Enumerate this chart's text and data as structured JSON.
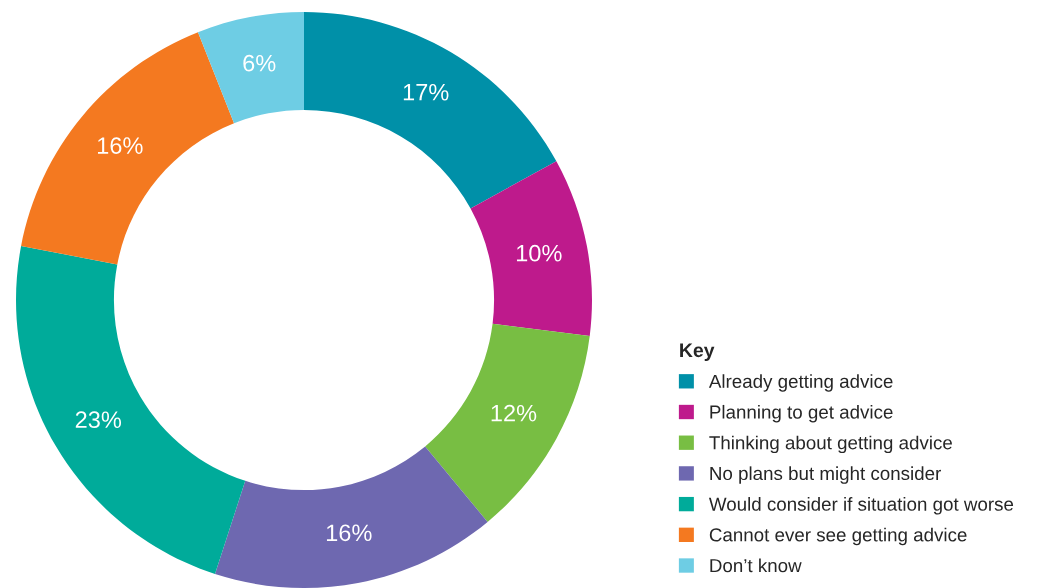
{
  "chart_data": {
    "type": "donut",
    "legend_title": "Key",
    "categories": [
      "Already getting advice",
      "Planning to get advice",
      "Thinking about getting advice",
      "No plans but might consider",
      "Would consider if situation got worse",
      "Cannot ever see getting advice",
      "Don’t know"
    ],
    "values": [
      17,
      10,
      12,
      16,
      23,
      16,
      6
    ],
    "value_labels": [
      "17%",
      "10%",
      "12%",
      "16%",
      "23%",
      "16%",
      "6%"
    ],
    "colors": [
      "#0090a8",
      "#be1a8c",
      "#78be43",
      "#6e68b0",
      "#00ab9a",
      "#f47920",
      "#6ecde4"
    ],
    "legend": "bottom right"
  }
}
